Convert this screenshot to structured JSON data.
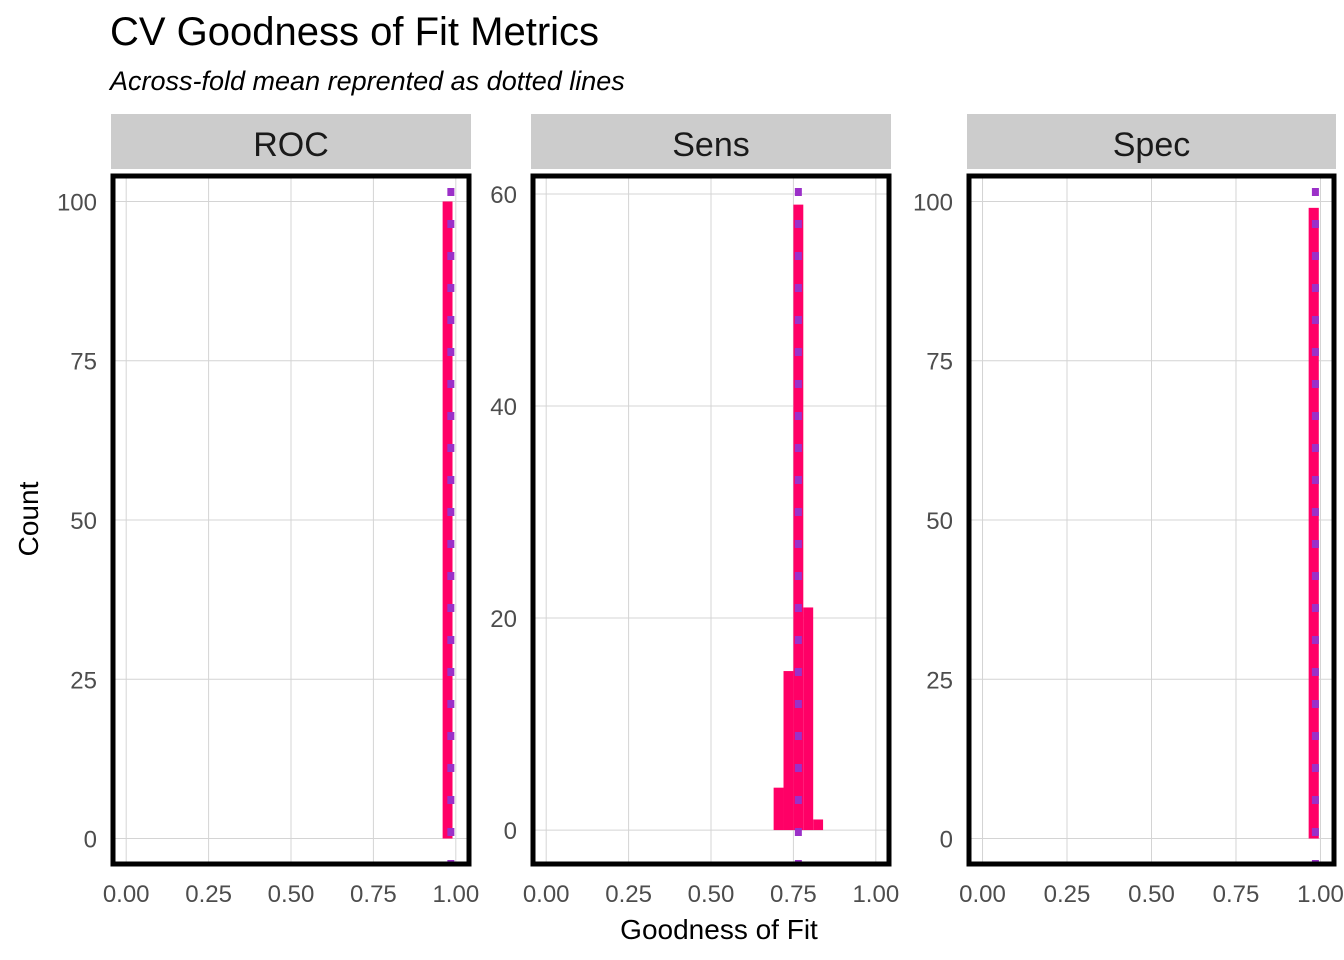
{
  "chart_data": {
    "type": "bar",
    "title": "CV Goodness of Fit Metrics",
    "subtitle": "Across-fold mean reprented as dotted lines",
    "xlabel": "Goodness of Fit",
    "ylabel": "Count",
    "grid": true,
    "colors": {
      "bar": "#ff0066",
      "mean_line": "#9b30c8",
      "strip": "#cccccc",
      "panel_border": "#000000",
      "grid": "#d4d4d4",
      "tick_text": "#4d4d4d"
    },
    "panels": [
      {
        "name": "ROC",
        "xlim": [
          -0.04,
          1.04
        ],
        "ylim": [
          -4,
          104
        ],
        "x_ticks": [
          0,
          0.25,
          0.5,
          0.75,
          1
        ],
        "x_tick_labels": [
          "0.00",
          "0.25",
          "0.50",
          "0.75",
          "1.00"
        ],
        "y_ticks": [
          0,
          25,
          50,
          75,
          100
        ],
        "y_tick_labels": [
          "0",
          "25",
          "50",
          "75",
          "100"
        ],
        "bins": [
          {
            "x0": 0.96,
            "x1": 0.99,
            "count": 100
          }
        ],
        "mean": 0.985
      },
      {
        "name": "Sens",
        "xlim": [
          -0.04,
          1.04
        ],
        "ylim": [
          -3.2,
          61.7
        ],
        "x_ticks": [
          0,
          0.25,
          0.5,
          0.75,
          1
        ],
        "x_tick_labels": [
          "0.00",
          "0.25",
          "0.50",
          "0.75",
          "1.00"
        ],
        "y_ticks": [
          0,
          20,
          40,
          60
        ],
        "y_tick_labels": [
          "0",
          "20",
          "40",
          "60"
        ],
        "bins": [
          {
            "x0": 0.69,
            "x1": 0.72,
            "count": 4
          },
          {
            "x0": 0.72,
            "x1": 0.75,
            "count": 15
          },
          {
            "x0": 0.75,
            "x1": 0.78,
            "count": 59
          },
          {
            "x0": 0.78,
            "x1": 0.81,
            "count": 21
          },
          {
            "x0": 0.81,
            "x1": 0.84,
            "count": 1
          }
        ],
        "mean": 0.765
      },
      {
        "name": "Spec",
        "xlim": [
          -0.04,
          1.04
        ],
        "ylim": [
          -4,
          104
        ],
        "x_ticks": [
          0,
          0.25,
          0.5,
          0.75,
          1
        ],
        "x_tick_labels": [
          "0.00",
          "0.25",
          "0.50",
          "0.75",
          "1.00"
        ],
        "y_ticks": [
          0,
          25,
          50,
          75,
          100
        ],
        "y_tick_labels": [
          "0",
          "25",
          "50",
          "75",
          "100"
        ],
        "bins": [
          {
            "x0": 0.965,
            "x1": 0.995,
            "count": 99
          }
        ],
        "mean": 0.985
      }
    ]
  }
}
